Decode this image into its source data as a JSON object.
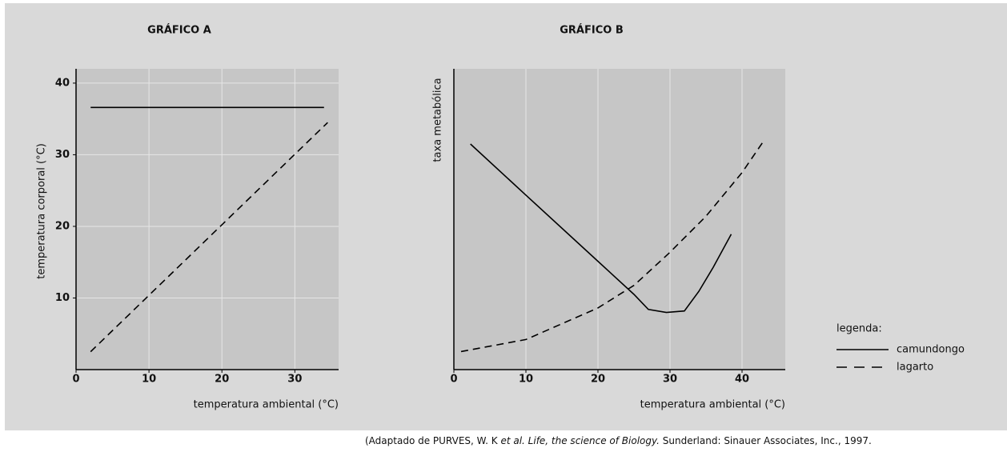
{
  "chart_data": [
    {
      "type": "line",
      "title": "GRÁFICO A",
      "xlabel": "temperatura ambiental (°C)",
      "ylabel": "temperatura corporal (°C)",
      "xlim": [
        0,
        36
      ],
      "ylim": [
        0,
        42
      ],
      "xticks": [
        0,
        10,
        20,
        30
      ],
      "yticks": [
        10,
        20,
        30,
        40
      ],
      "grid": true,
      "series": [
        {
          "name": "camundongo",
          "color": "#000000",
          "dashed": false,
          "x": [
            2,
            34
          ],
          "values": [
            36.6,
            36.6
          ]
        },
        {
          "name": "lagarto",
          "color": "#000000",
          "dashed": true,
          "x": [
            2,
            34.5
          ],
          "values": [
            2.5,
            34.5
          ]
        }
      ]
    },
    {
      "type": "line",
      "title": "GRÁFICO B",
      "xlabel": "temperatura ambiental (°C)",
      "ylabel": "taxa metabólica",
      "xlim": [
        0,
        46
      ],
      "ylim": [
        0,
        10
      ],
      "xticks": [
        0,
        10,
        20,
        30,
        40
      ],
      "grid": true,
      "legend_title": "legenda:",
      "series": [
        {
          "name": "camundongo",
          "color": "#000000",
          "dashed": false,
          "x": [
            2.3,
            10,
            20,
            25,
            27,
            29.5,
            32,
            34,
            36,
            38.5
          ],
          "values": [
            7.5,
            5.8,
            3.6,
            2.5,
            2.0,
            1.9,
            1.95,
            2.6,
            3.4,
            4.5
          ]
        },
        {
          "name": "lagarto",
          "color": "#000000",
          "dashed": true,
          "x": [
            1,
            10,
            20,
            25,
            30,
            35,
            40,
            43
          ],
          "values": [
            0.6,
            1.0,
            2.05,
            2.8,
            3.9,
            5.1,
            6.55,
            7.6
          ]
        }
      ]
    }
  ],
  "source": [
    "(Adaptado de PURVES, W. K ",
    "et al. Life, the science of Biology.",
    " Sunderland: Sinauer Associates, Inc., 1997."
  ]
}
